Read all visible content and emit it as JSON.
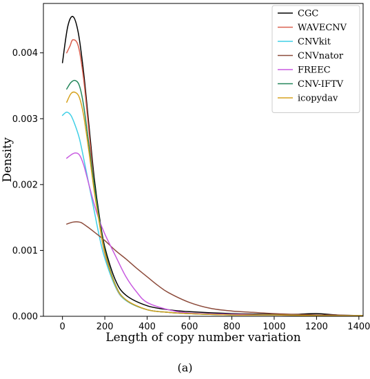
{
  "caption": "(a)",
  "chart_data": {
    "type": "line",
    "title": "",
    "xlabel": "Length of copy number variation",
    "ylabel": "Density",
    "xlim": [
      -90,
      1420
    ],
    "ylim": [
      0,
      0.00475
    ],
    "xticks": [
      0,
      200,
      400,
      600,
      800,
      1000,
      1200,
      1400
    ],
    "yticks": [
      0.0,
      0.001,
      0.002,
      0.003,
      0.004
    ],
    "ytick_labels": [
      "0.000",
      "0.001",
      "0.002",
      "0.003",
      "0.004"
    ],
    "grid": false,
    "legend_position": "top-right",
    "series": [
      {
        "name": "CGC",
        "color": "#000000",
        "x": [
          0,
          25,
          50,
          75,
          100,
          125,
          150,
          175,
          200,
          250,
          300,
          400,
          500,
          600,
          800,
          1000,
          1100,
          1200,
          1300,
          1420
        ],
        "y": [
          0.00385,
          0.0044,
          0.00455,
          0.0043,
          0.0037,
          0.0029,
          0.0021,
          0.0015,
          0.00105,
          0.00055,
          0.00032,
          0.00016,
          0.0001,
          7e-05,
          4e-05,
          3e-05,
          3e-05,
          4e-05,
          2e-05,
          1e-05
        ]
      },
      {
        "name": "WAVECNV",
        "color": "#d9604f",
        "x": [
          20,
          35,
          50,
          75,
          100,
          125,
          150,
          175,
          200,
          250,
          300,
          400,
          500,
          600,
          800,
          1000,
          1200,
          1420
        ],
        "y": [
          0.004,
          0.0041,
          0.0042,
          0.0041,
          0.0036,
          0.0028,
          0.002,
          0.0014,
          0.00095,
          0.00045,
          0.00024,
          0.0001,
          6e-05,
          4e-05,
          3e-05,
          2e-05,
          2e-05,
          1e-05
        ]
      },
      {
        "name": "CNVkit",
        "color": "#3fcfe6",
        "x": [
          0,
          20,
          40,
          60,
          80,
          100,
          125,
          150,
          175,
          200,
          250,
          300,
          400,
          500,
          600,
          800,
          1000,
          1200,
          1420
        ],
        "y": [
          0.00305,
          0.0031,
          0.00305,
          0.0029,
          0.0027,
          0.0024,
          0.002,
          0.0016,
          0.0012,
          0.00088,
          0.00045,
          0.00024,
          0.0001,
          6e-05,
          4e-05,
          2e-05,
          2e-05,
          1e-05,
          1e-05
        ]
      },
      {
        "name": "CNVnator",
        "color": "#8c4a3a",
        "x": [
          20,
          50,
          80,
          100,
          150,
          200,
          250,
          300,
          350,
          400,
          450,
          500,
          600,
          700,
          800,
          900,
          1000,
          1100,
          1200,
          1300,
          1420
        ],
        "y": [
          0.0014,
          0.00143,
          0.00143,
          0.0014,
          0.00128,
          0.00115,
          0.001,
          0.00087,
          0.00073,
          0.0006,
          0.00047,
          0.00036,
          0.00021,
          0.00012,
          8e-05,
          6e-05,
          4e-05,
          3e-05,
          2e-05,
          1e-05,
          5e-06
        ]
      },
      {
        "name": "FREEC",
        "color": "#c85ae0",
        "x": [
          20,
          40,
          60,
          80,
          100,
          125,
          150,
          175,
          200,
          250,
          300,
          350,
          400,
          500,
          600,
          800,
          1000,
          1200,
          1420
        ],
        "y": [
          0.0024,
          0.00245,
          0.00248,
          0.00245,
          0.0023,
          0.002,
          0.0017,
          0.00145,
          0.00125,
          0.00092,
          0.0006,
          0.00037,
          0.00021,
          0.0001,
          5e-05,
          3e-05,
          2e-05,
          1e-05,
          1e-05
        ]
      },
      {
        "name": "CNV-IFTV",
        "color": "#23865a",
        "x": [
          20,
          40,
          60,
          80,
          100,
          125,
          150,
          175,
          200,
          250,
          300,
          400,
          500,
          600,
          800,
          1000,
          1200,
          1420
        ],
        "y": [
          0.00345,
          0.00355,
          0.00358,
          0.0035,
          0.0032,
          0.0026,
          0.002,
          0.00145,
          0.001,
          0.00048,
          0.00025,
          0.0001,
          6e-05,
          4e-05,
          2e-05,
          2e-05,
          1e-05,
          1e-05
        ]
      },
      {
        "name": "icopydav",
        "color": "#d6a21e",
        "x": [
          20,
          40,
          60,
          80,
          100,
          125,
          150,
          175,
          200,
          250,
          300,
          400,
          500,
          600,
          800,
          1000,
          1200,
          1420
        ],
        "y": [
          0.00325,
          0.00338,
          0.0034,
          0.00332,
          0.00305,
          0.0025,
          0.0019,
          0.0014,
          0.00097,
          0.00047,
          0.00025,
          0.0001,
          6e-05,
          4e-05,
          2e-05,
          2e-05,
          1e-05,
          1e-05
        ]
      }
    ]
  }
}
